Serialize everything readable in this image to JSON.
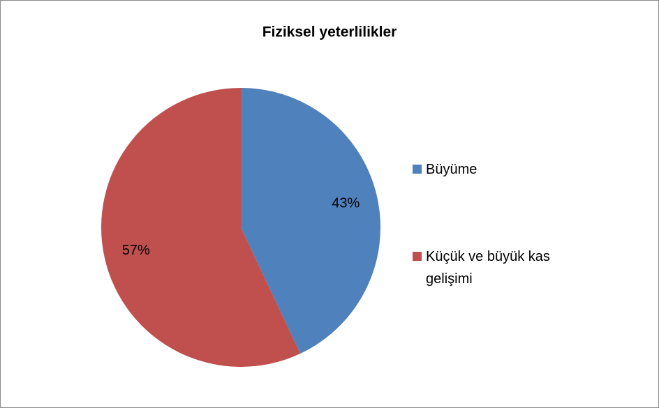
{
  "chart_data": {
    "type": "pie",
    "title": "Fiziksel yeterlilikler",
    "categories": [
      "Büyüme",
      "Küçük ve büyük kas gelişimi"
    ],
    "values": [
      43,
      57
    ],
    "value_labels": [
      "43%",
      "57%"
    ],
    "colors": [
      "#4f81bd",
      "#c0504d"
    ],
    "legend": "right"
  }
}
